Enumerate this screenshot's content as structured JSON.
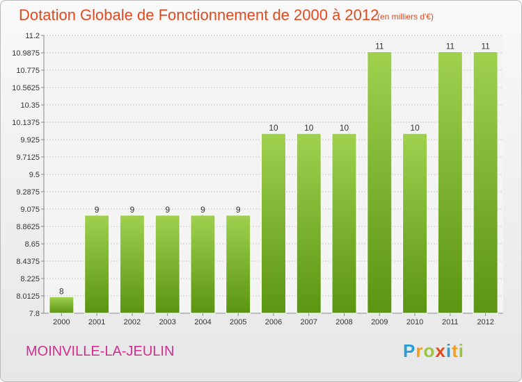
{
  "header": {
    "title": "Dotation Globale de Fonctionnement de 2000 à 2012",
    "unit": "(en milliers d'€)"
  },
  "footer": {
    "commune": "MOINVILLE-LA-JEULIN",
    "logo_letters": [
      "P",
      "r",
      "o",
      "x",
      "i",
      "t",
      "i"
    ],
    "logo_colors": [
      "#2a9fd6",
      "#f0a01e",
      "#9bc53d",
      "#e04a1e",
      "#2a9fd6",
      "#f0a01e",
      "#9bc53d"
    ]
  },
  "colors": {
    "title": "#e04a1e",
    "commune": "#cf2f8f",
    "bar_top": "#9fd14f",
    "bar_bottom": "#5a9512",
    "grid": "#c8c8c8",
    "text": "#333333"
  },
  "chart_data": {
    "type": "bar",
    "title": "Dotation Globale de Fonctionnement de 2000 à 2012",
    "subtitle": "(en milliers d'€)",
    "xlabel": "",
    "ylabel": "",
    "categories": [
      "2000",
      "2001",
      "2002",
      "2003",
      "2004",
      "2005",
      "2006",
      "2007",
      "2008",
      "2009",
      "2010",
      "2011",
      "2012"
    ],
    "values": [
      8,
      9,
      9,
      9,
      9,
      9,
      10,
      10,
      10,
      11,
      10,
      11,
      11
    ],
    "data_labels": [
      "8",
      "9",
      "9",
      "9",
      "9",
      "9",
      "10",
      "10",
      "10",
      "11",
      "10",
      "11",
      "11"
    ],
    "ylim": [
      7.8,
      11.2
    ],
    "yticks": [
      7.8,
      8.0125,
      8.225,
      8.4375,
      8.65,
      8.8625,
      9.075,
      9.2875,
      9.5,
      9.7125,
      9.925,
      10.1375,
      10.35,
      10.5625,
      10.775,
      10.9875,
      11.2
    ],
    "ytick_labels": [
      "7.8",
      "8.0125",
      "8.225",
      "8.4375",
      "8.65",
      "8.8625",
      "9.075",
      "9.2875",
      "9.5",
      "9.7125",
      "9.925",
      "10.1375",
      "10.35",
      "10.5625",
      "10.775",
      "10.9875",
      "11.2"
    ],
    "grid": true,
    "legend": "none"
  }
}
